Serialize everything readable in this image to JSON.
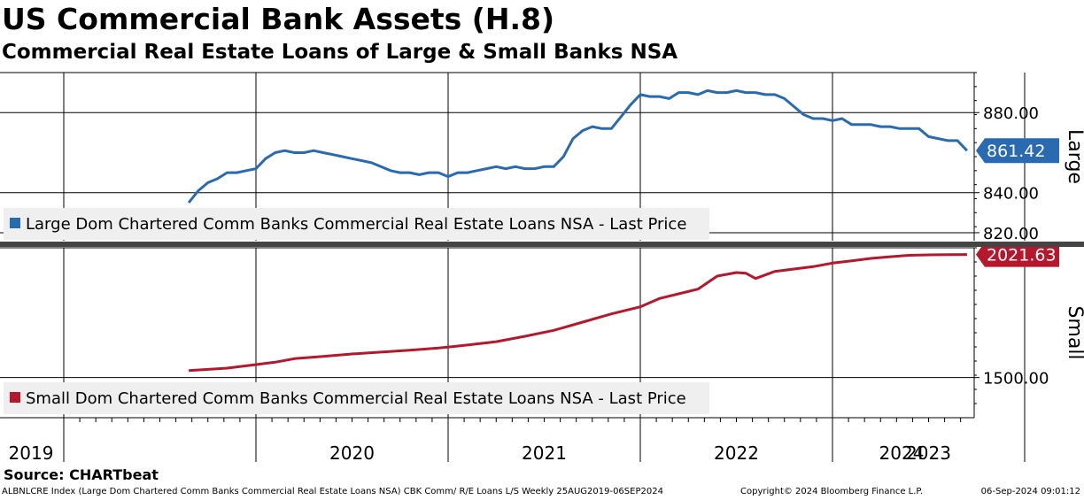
{
  "title": "US Commercial Bank Assets (H.8)",
  "subtitle": "Commercial Real Estate Loans of Large & Small Banks NSA",
  "source": "Source: CHARTbeat",
  "footer": {
    "left": "ALBNLCRE Index (Large Dom Chartered Comm Banks Commercial Real Estate Loans NSA) CBK Comm/ R/E Loans L/S  Weekly 25AUG2019-06SEP2024",
    "middle": "Copyright© 2024 Bloomberg Finance L.P.",
    "right": "06-Sep-2024 09:01:12"
  },
  "colors": {
    "large": "#2a6ab0",
    "small": "#b5172d",
    "grid": "#000000"
  },
  "chart_data": [
    {
      "type": "line",
      "panel_label": "Large",
      "legend": "Large Dom Chartered Comm Banks Commercial Real Estate Loans NSA - Last Price",
      "last_value_label": "861.42",
      "ylim": [
        816,
        900
      ],
      "y_ticks": [
        "820.00",
        "840.00",
        "880.00"
      ],
      "y_tick_values": [
        820,
        840,
        880
      ],
      "x_ticks": [
        "2019",
        "2020",
        "2021",
        "2022",
        "2023",
        "2024"
      ],
      "series": [
        {
          "x": [
            2019.65,
            2019.7,
            2019.75,
            2019.8,
            2019.85,
            2019.9,
            2019.95,
            2020.0,
            2020.05,
            2020.1,
            2020.15,
            2020.2,
            2020.25,
            2020.3,
            2020.35,
            2020.4,
            2020.45,
            2020.5,
            2020.55,
            2020.6,
            2020.65,
            2020.7,
            2020.75,
            2020.8,
            2020.85,
            2020.9,
            2020.95,
            2021.0,
            2021.05,
            2021.1,
            2021.15,
            2021.2,
            2021.25,
            2021.3,
            2021.35,
            2021.4,
            2021.45,
            2021.5,
            2021.55,
            2021.6,
            2021.65,
            2021.7,
            2021.75,
            2021.8,
            2021.85,
            2021.9,
            2021.95,
            2022.0,
            2022.05,
            2022.1,
            2022.15,
            2022.2,
            2022.25,
            2022.3,
            2022.35,
            2022.4,
            2022.45,
            2022.5,
            2022.55,
            2022.6,
            2022.65,
            2022.7,
            2022.75,
            2022.8,
            2022.85,
            2022.9,
            2022.95,
            2023.0,
            2023.05,
            2023.1,
            2023.15,
            2023.2,
            2023.25,
            2023.3,
            2023.35,
            2023.4,
            2023.45,
            2023.5,
            2023.55,
            2023.6,
            2023.65,
            2023.7
          ],
          "y": [
            835,
            841,
            845,
            847,
            850,
            850,
            851,
            852,
            857,
            860,
            861,
            860,
            860,
            861,
            860,
            859,
            858,
            857,
            856,
            855,
            853,
            851,
            850,
            850,
            849,
            850,
            850,
            848,
            850,
            850,
            851,
            852,
            853,
            852,
            853,
            852,
            852,
            853,
            853,
            858,
            867,
            871,
            873,
            872,
            872,
            878,
            884,
            889,
            888,
            888,
            887,
            890,
            890,
            889,
            891,
            890,
            890,
            891,
            890,
            890,
            889,
            889,
            887,
            883,
            879,
            877,
            877,
            876,
            877,
            874,
            874,
            874,
            873,
            873,
            872,
            872,
            872,
            868,
            867,
            866,
            866,
            861
          ]
        }
      ]
    },
    {
      "type": "line",
      "panel_label": "Small",
      "legend": "Small Dom Chartered Comm Banks Commercial Real Estate Loans NSA - Last Price",
      "last_value_label": "2021.63",
      "ylim": [
        1330,
        2050
      ],
      "y_ticks": [
        "1500.00"
      ],
      "y_tick_values": [
        1500
      ],
      "x_ticks": [
        "2019",
        "2020",
        "2021",
        "2022",
        "2023",
        "2024"
      ],
      "series": [
        {
          "x": [
            2019.65,
            2019.85,
            2020.0,
            2020.1,
            2020.2,
            2020.35,
            2020.5,
            2020.65,
            2020.8,
            2020.95,
            2021.1,
            2021.25,
            2021.4,
            2021.55,
            2021.7,
            2021.85,
            2022.0,
            2022.1,
            2022.2,
            2022.3,
            2022.4,
            2022.5,
            2022.55,
            2022.6,
            2022.65,
            2022.7,
            2022.8,
            2022.9,
            2023.0,
            2023.1,
            2023.2,
            2023.3,
            2023.4,
            2023.5,
            2023.6,
            2023.7
          ],
          "y": [
            1530,
            1540,
            1555,
            1565,
            1580,
            1590,
            1600,
            1608,
            1616,
            1625,
            1638,
            1652,
            1675,
            1700,
            1735,
            1770,
            1800,
            1835,
            1855,
            1875,
            1930,
            1945,
            1942,
            1920,
            1935,
            1950,
            1960,
            1970,
            1985,
            1995,
            2005,
            2012,
            2018,
            2020,
            2021,
            2021.63
          ]
        }
      ]
    }
  ]
}
